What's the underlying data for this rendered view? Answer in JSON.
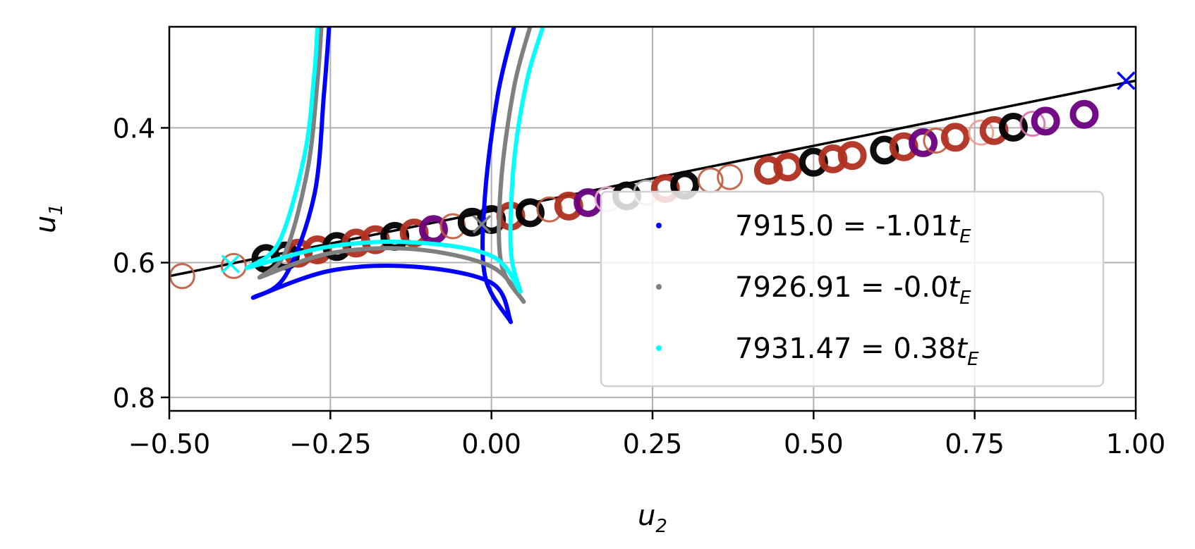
{
  "chart_data": {
    "type": "scatter",
    "xlabel": "u",
    "xlabel_sub": "2",
    "ylabel": "u",
    "ylabel_sub": "1",
    "xlim": [
      -0.5,
      1.0
    ],
    "ylim": [
      0.25,
      0.82
    ],
    "y_inverted": true,
    "grid": true,
    "x_ticks": [
      -0.5,
      -0.25,
      0.0,
      0.25,
      0.5,
      0.75,
      1.0
    ],
    "x_tick_labels": [
      "−0.50",
      "−0.25",
      "0.00",
      "0.25",
      "0.50",
      "0.75",
      "1.00"
    ],
    "y_ticks": [
      0.4,
      0.6,
      0.8
    ],
    "y_tick_labels": [
      "0.4",
      "0.6",
      "0.8"
    ],
    "legend_position": "lower-right",
    "legend": [
      {
        "label": "7915.0 = -1.01",
        "sub": "E",
        "color": "#0000ff"
      },
      {
        "label": "7926.91 = -0.0",
        "sub": "E",
        "color": "#808080"
      },
      {
        "label": "7931.47 = 0.38",
        "sub": "E",
        "color": "#00ffff"
      }
    ],
    "trajectory_line": {
      "color": "#000000",
      "points": [
        [
          -0.5,
          0.62
        ],
        [
          1.0,
          0.33
        ]
      ]
    },
    "source_markers": [
      {
        "u2": 0.985,
        "u1": 0.33,
        "color": "#0000ff"
      },
      {
        "u2": -0.015,
        "u1": 0.543,
        "color": "#808080"
      },
      {
        "u2": -0.405,
        "u1": 0.602,
        "color": "#00ffff"
      }
    ],
    "caustics": [
      {
        "name": "7915.0 = -1.01t_E",
        "color": "#0000ff",
        "lower_arc": [
          [
            -0.37,
            0.652
          ],
          [
            -0.25,
            0.612
          ],
          [
            -0.12,
            0.606
          ],
          [
            0.0,
            0.63
          ],
          [
            0.03,
            0.688
          ]
        ],
        "left_cusp": [
          [
            -0.37,
            0.652
          ],
          [
            -0.32,
            0.62
          ],
          [
            -0.275,
            0.5
          ],
          [
            -0.26,
            0.35
          ],
          [
            -0.252,
            0.25
          ]
        ],
        "right_cusp": [
          [
            0.03,
            0.688
          ],
          [
            -0.01,
            0.62
          ],
          [
            -0.01,
            0.5
          ],
          [
            0.01,
            0.35
          ],
          [
            0.035,
            0.25
          ]
        ]
      },
      {
        "name": "7926.91 = -0.0t_E",
        "color": "#808080",
        "lower_arc": [
          [
            -0.36,
            0.622
          ],
          [
            -0.25,
            0.586
          ],
          [
            -0.12,
            0.58
          ],
          [
            0.0,
            0.606
          ],
          [
            0.05,
            0.658
          ]
        ],
        "left_cusp": [
          [
            -0.36,
            0.622
          ],
          [
            -0.32,
            0.585
          ],
          [
            -0.285,
            0.46
          ],
          [
            -0.27,
            0.33
          ],
          [
            -0.264,
            0.25
          ]
        ],
        "right_cusp": [
          [
            0.05,
            0.658
          ],
          [
            0.015,
            0.6
          ],
          [
            0.015,
            0.48
          ],
          [
            0.035,
            0.34
          ],
          [
            0.06,
            0.25
          ]
        ]
      },
      {
        "name": "7931.47 = 0.38t_E",
        "color": "#00ffff",
        "upper_arc": [
          [
            -0.38,
            0.608
          ],
          [
            -0.25,
            0.576
          ],
          [
            -0.12,
            0.57
          ],
          [
            0.0,
            0.59
          ],
          [
            0.045,
            0.643
          ]
        ],
        "left_cusp": [
          [
            -0.38,
            0.608
          ],
          [
            -0.33,
            0.57
          ],
          [
            -0.29,
            0.44
          ],
          [
            -0.275,
            0.32
          ],
          [
            -0.27,
            0.25
          ]
        ],
        "right_cusp": [
          [
            0.045,
            0.643
          ],
          [
            0.03,
            0.58
          ],
          [
            0.035,
            0.45
          ],
          [
            0.055,
            0.33
          ],
          [
            0.08,
            0.25
          ]
        ]
      }
    ],
    "image_circles": [
      {
        "u2": -0.48,
        "u1": 0.62,
        "color": "#c05a3c",
        "style": "open"
      },
      {
        "u2": -0.4,
        "u1": 0.605,
        "color": "#c05a3c",
        "style": "open"
      },
      {
        "u2": -0.35,
        "u1": 0.594,
        "color": "#000000",
        "style": "thick"
      },
      {
        "u2": -0.32,
        "u1": 0.59,
        "color": "#000000",
        "style": "thick"
      },
      {
        "u2": -0.3,
        "u1": 0.586,
        "color": "#b03020",
        "style": "thick"
      },
      {
        "u2": -0.27,
        "u1": 0.581,
        "color": "#b03020",
        "style": "thick"
      },
      {
        "u2": -0.24,
        "u1": 0.576,
        "color": "#000000",
        "style": "thick"
      },
      {
        "u2": -0.21,
        "u1": 0.571,
        "color": "#b03020",
        "style": "thick"
      },
      {
        "u2": -0.18,
        "u1": 0.566,
        "color": "#b03020",
        "style": "thick"
      },
      {
        "u2": -0.15,
        "u1": 0.561,
        "color": "#000000",
        "style": "thick"
      },
      {
        "u2": -0.12,
        "u1": 0.556,
        "color": "#b03020",
        "style": "thick"
      },
      {
        "u2": -0.09,
        "u1": 0.551,
        "color": "#6a0080",
        "style": "thick"
      },
      {
        "u2": -0.06,
        "u1": 0.546,
        "color": "#c05a3c",
        "style": "open"
      },
      {
        "u2": -0.03,
        "u1": 0.54,
        "color": "#000000",
        "style": "thick"
      },
      {
        "u2": 0.0,
        "u1": 0.536,
        "color": "#000000",
        "style": "thick"
      },
      {
        "u2": 0.03,
        "u1": 0.531,
        "color": "#b03020",
        "style": "thick"
      },
      {
        "u2": 0.06,
        "u1": 0.526,
        "color": "#000000",
        "style": "thick"
      },
      {
        "u2": 0.09,
        "u1": 0.521,
        "color": "#c05a3c",
        "style": "open"
      },
      {
        "u2": 0.12,
        "u1": 0.516,
        "color": "#b03020",
        "style": "thick"
      },
      {
        "u2": 0.15,
        "u1": 0.511,
        "color": "#6a0080",
        "style": "thick"
      },
      {
        "u2": 0.18,
        "u1": 0.506,
        "color": "#e6b0d0",
        "style": "open"
      },
      {
        "u2": 0.21,
        "u1": 0.501,
        "color": "#000000",
        "style": "thick"
      },
      {
        "u2": 0.24,
        "u1": 0.496,
        "color": "#b0b0b0",
        "style": "open"
      },
      {
        "u2": 0.27,
        "u1": 0.49,
        "color": "#b03020",
        "style": "thick"
      },
      {
        "u2": 0.3,
        "u1": 0.485,
        "color": "#000000",
        "style": "thick"
      },
      {
        "u2": 0.34,
        "u1": 0.478,
        "color": "#c05a3c",
        "style": "open"
      },
      {
        "u2": 0.37,
        "u1": 0.473,
        "color": "#c05a3c",
        "style": "open"
      },
      {
        "u2": 0.43,
        "u1": 0.463,
        "color": "#b03020",
        "style": "thick"
      },
      {
        "u2": 0.46,
        "u1": 0.458,
        "color": "#b03020",
        "style": "thick"
      },
      {
        "u2": 0.5,
        "u1": 0.451,
        "color": "#000000",
        "style": "thick"
      },
      {
        "u2": 0.53,
        "u1": 0.446,
        "color": "#b03020",
        "style": "thick"
      },
      {
        "u2": 0.56,
        "u1": 0.441,
        "color": "#b03020",
        "style": "thick"
      },
      {
        "u2": 0.61,
        "u1": 0.433,
        "color": "#000000",
        "style": "thick"
      },
      {
        "u2": 0.64,
        "u1": 0.428,
        "color": "#b03020",
        "style": "thick"
      },
      {
        "u2": 0.67,
        "u1": 0.422,
        "color": "#6a0080",
        "style": "thick"
      },
      {
        "u2": 0.69,
        "u1": 0.419,
        "color": "#c05a3c",
        "style": "open"
      },
      {
        "u2": 0.72,
        "u1": 0.414,
        "color": "#b03020",
        "style": "thick"
      },
      {
        "u2": 0.76,
        "u1": 0.407,
        "color": "#e6a090",
        "style": "open"
      },
      {
        "u2": 0.78,
        "u1": 0.404,
        "color": "#b03020",
        "style": "thick"
      },
      {
        "u2": 0.81,
        "u1": 0.399,
        "color": "#000000",
        "style": "thick"
      },
      {
        "u2": 0.84,
        "u1": 0.394,
        "color": "#d870b0",
        "style": "open"
      },
      {
        "u2": 0.86,
        "u1": 0.39,
        "color": "#6a0080",
        "style": "thick"
      },
      {
        "u2": 0.92,
        "u1": 0.38,
        "color": "#6a0080",
        "style": "thick"
      }
    ]
  }
}
